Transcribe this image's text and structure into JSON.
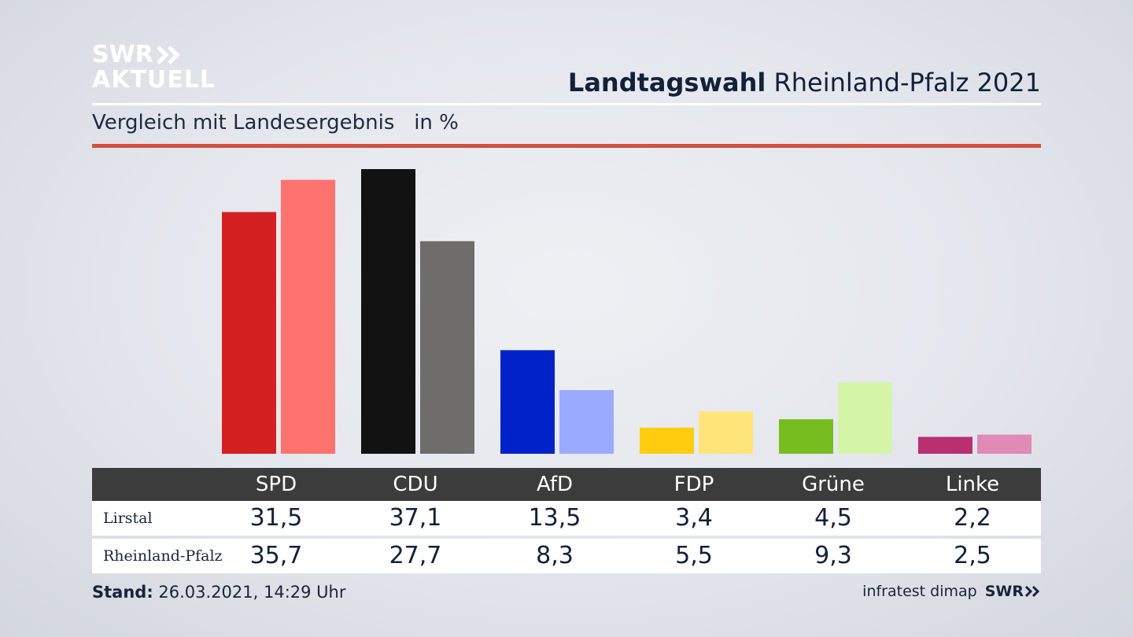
{
  "logo": {
    "line1": "SWR",
    "line2": "AKTUELL"
  },
  "header": {
    "title_bold": "Landtagswahl",
    "title_rest": " Rheinland-Pfalz 2021",
    "subtitle": "Vergleich mit Landesergebnis   in %"
  },
  "colors": {
    "accent_line": "#d0513e",
    "table_header": "#3c3c3c"
  },
  "chart_data": {
    "type": "bar",
    "categories": [
      "SPD",
      "CDU",
      "AfD",
      "FDP",
      "Grüne",
      "Linke"
    ],
    "series": [
      {
        "name": "Lirstal",
        "values": [
          31.5,
          37.1,
          13.5,
          3.4,
          4.5,
          2.2
        ],
        "colors": [
          "#d42020",
          "#121212",
          "#0022c8",
          "#ffcc10",
          "#78bd20",
          "#b83070"
        ]
      },
      {
        "name": "Rheinland-Pfalz",
        "values": [
          35.7,
          27.7,
          8.3,
          5.5,
          9.3,
          2.5
        ],
        "colors": [
          "#ff736e",
          "#6e6d6b",
          "#9aaaff",
          "#ffe47a",
          "#d4f5a8",
          "#e08ab6"
        ]
      }
    ],
    "title": "Vergleich mit Landesergebnis",
    "ylabel": "in %",
    "ylim": [
      0,
      37.1
    ],
    "grid": false,
    "legend": "table-below"
  },
  "table": {
    "headers": [
      "SPD",
      "CDU",
      "AfD",
      "FDP",
      "Grüne",
      "Linke"
    ],
    "rows": [
      {
        "label": "Lirstal",
        "values": [
          "31,5",
          "37,1",
          "13,5",
          "3,4",
          "4,5",
          "2,2"
        ]
      },
      {
        "label": "Rheinland-Pfalz",
        "values": [
          "35,7",
          "27,7",
          "8,3",
          "5,5",
          "9,3",
          "2,5"
        ]
      }
    ]
  },
  "footer": {
    "stand_label": "Stand:",
    "stand_value": " 26.03.2021, 14:29 Uhr",
    "source": "infratest dimap",
    "brand": "SWR"
  }
}
